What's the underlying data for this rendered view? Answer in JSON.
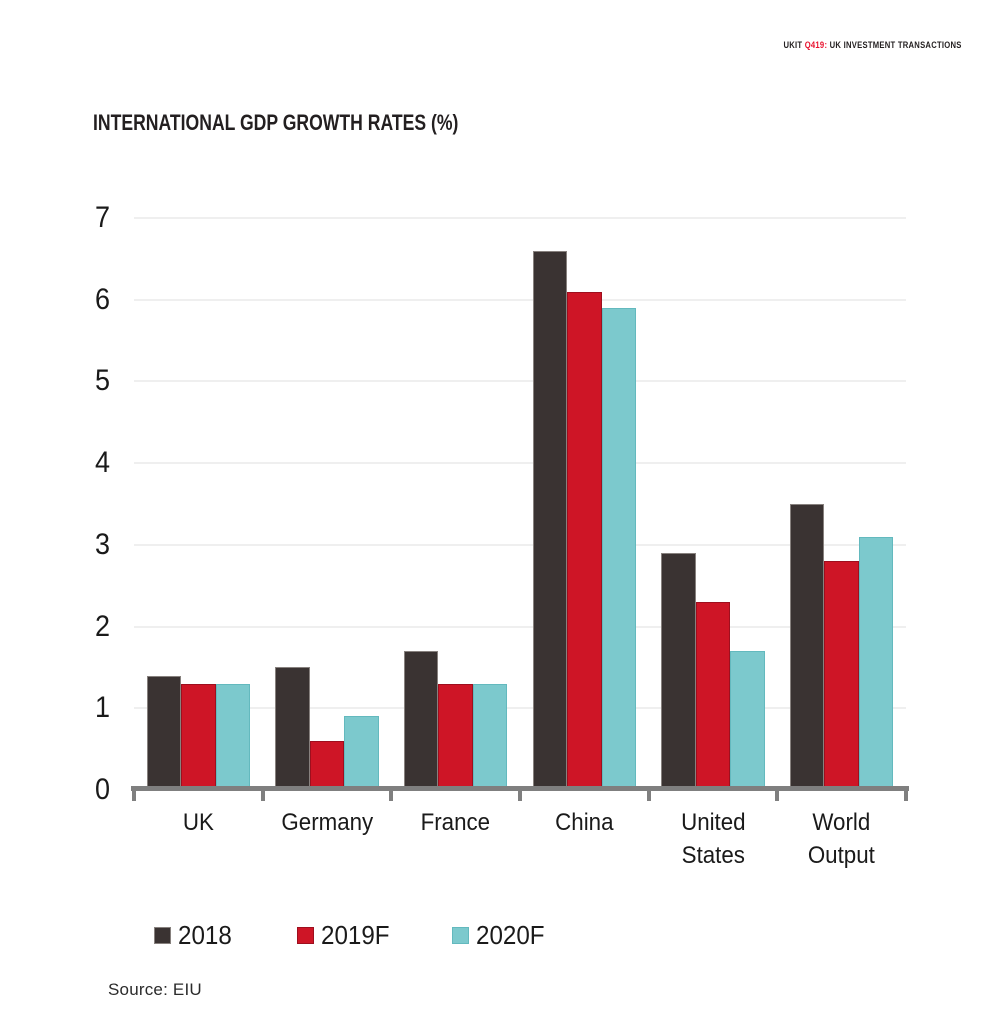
{
  "header": {
    "code": "UKIT",
    "quarter": "Q419:",
    "title": "UK INVESTMENT TRANSACTIONS"
  },
  "footer": {
    "source": "Source: EIU"
  },
  "colors": {
    "accent_red": "#e8112d",
    "axis_line": "#7f7f7f",
    "gridline": "#efefef",
    "text": "#1a1a1a"
  },
  "chart_data": {
    "type": "bar",
    "title": "INTERNATIONAL GDP GROWTH RATES (%)",
    "xlabel": "",
    "ylabel": "",
    "categories": [
      "UK",
      "Germany",
      "France",
      "China",
      "United\nStates",
      "World\nOutput"
    ],
    "series": [
      {
        "name": "2018",
        "color": "#3a3332",
        "border": "#87817e",
        "values": [
          1.4,
          1.5,
          1.7,
          6.6,
          2.9,
          3.5
        ]
      },
      {
        "name": "2019F",
        "color": "#ce1526",
        "border": "#9e0f1e",
        "values": [
          1.3,
          0.6,
          1.3,
          6.1,
          2.3,
          2.8
        ]
      },
      {
        "name": "2020F",
        "color": "#7cc9cd",
        "border": "#63b9be",
        "values": [
          1.3,
          0.9,
          1.3,
          5.9,
          1.7,
          3.1
        ]
      }
    ],
    "ylim": [
      0,
      7
    ],
    "yticks": [
      0,
      1,
      2,
      3,
      4,
      5,
      6,
      7
    ],
    "grid": true,
    "legend_position": "bottom"
  }
}
